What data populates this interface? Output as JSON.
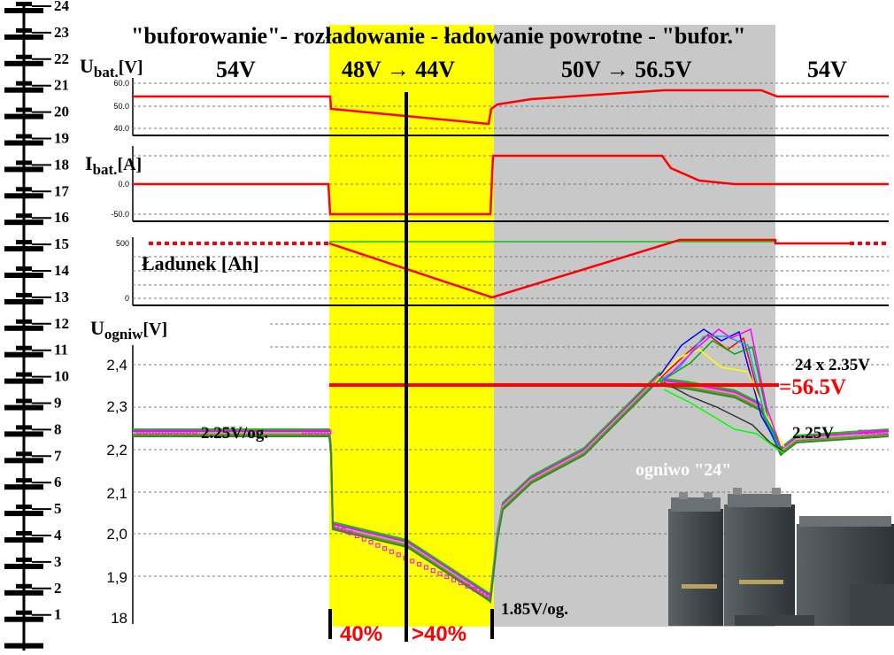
{
  "header": {
    "phase_buffer": "\"buforowanie\"",
    "sep1": "- ",
    "phase_discharge": "rozładowanie",
    "sep2": " - ładowanie powrotne - ",
    "phase_buffer_short": "\"bufor.\"",
    "v_buffer_left": "54V",
    "v_discharge": "48V → 44V",
    "v_recharge": "50V → 56.5V",
    "v_buffer_right": "54V"
  },
  "panels": {
    "ubat": {
      "label_main": "U",
      "label_sub": "bat.",
      "label_unit": "[V]",
      "ticks": [
        "60.0",
        "50.0",
        "40.0"
      ]
    },
    "ibat": {
      "label_main": "I",
      "label_sub": "bat.",
      "label_unit": "[A]",
      "ticks": [
        "0.0",
        "-50.0"
      ]
    },
    "charge": {
      "label": "Ładunek [Ah]",
      "ticks": [
        "500",
        "0"
      ]
    },
    "cells": {
      "label_main": "U",
      "label_sub": "ogniw",
      "label_unit": "[V]",
      "ticks": [
        "2,4",
        "2,3",
        "2,2",
        "2,1",
        "2,0",
        "1,9",
        "18"
      ]
    }
  },
  "annotations": {
    "cell_left": "2.25V/og.",
    "cell_right": "2.25V",
    "cell_min": "1.85V/og.",
    "formula": "24 x 2.35V",
    "result": "=56.5V",
    "cell24": "ogniwo \"24\"",
    "pct_first": "40%",
    "pct_second": ">40%"
  },
  "battery_stack": {
    "labels": [
      "24",
      "23",
      "22",
      "21",
      "20",
      "19",
      "18",
      "17",
      "16",
      "15",
      "14",
      "13",
      "12",
      "11",
      "10",
      "9",
      "8",
      "7",
      "6",
      "5",
      "4",
      "3",
      "2",
      "1"
    ]
  },
  "colors": {
    "discharge_band": "#ffff00",
    "recharge_band": "#c8c8c8",
    "trace_red": "#ff0000",
    "trace_green": "#00cc00",
    "cell_base": "#2d8a2d"
  }
}
